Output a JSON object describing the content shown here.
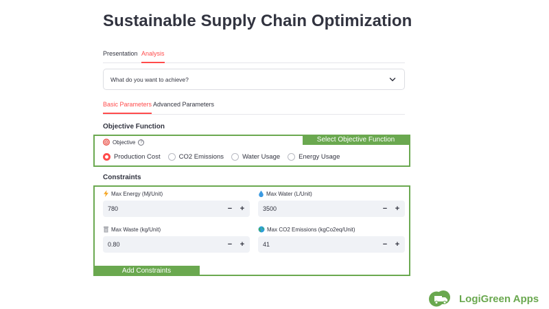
{
  "page": {
    "title": "Sustainable Supply Chain Optimization"
  },
  "main_tabs": [
    {
      "label": "Presentation",
      "active": false
    },
    {
      "label": "Analysis",
      "active": true
    }
  ],
  "expander": {
    "label": "What do you want to achieve?"
  },
  "sub_tabs": [
    {
      "label": "Basic Parameters",
      "active": true
    },
    {
      "label": "Advanced Parameters",
      "active": false
    }
  ],
  "objective": {
    "heading": "Objective Function",
    "label": "Objective",
    "help": "?",
    "annotation": "Select Objective Function",
    "options": [
      "Production Cost",
      "CO2 Emissions",
      "Water Usage",
      "Energy Usage"
    ],
    "selected": "Production Cost"
  },
  "constraints": {
    "heading": "Constraints",
    "annotation": "Add Constraints",
    "fields": [
      {
        "label": "Max Energy (Mj/Unit)",
        "value": "780",
        "icon": "lightning-icon"
      },
      {
        "label": "Max Water (L/Unit)",
        "value": "3500",
        "icon": "droplet-icon"
      },
      {
        "label": "Max Waste (kg/Unit)",
        "value": "0.80",
        "icon": "trash-icon"
      },
      {
        "label": "Max CO2 Emissions (kgCo2eq/Unit)",
        "value": "41",
        "icon": "globe-icon"
      }
    ],
    "minus": "−",
    "plus": "+"
  },
  "brand": {
    "name": "LogiGreen Apps"
  },
  "colors": {
    "accent": "#ff4b4b",
    "annotation_green": "#6aa84f",
    "input_bg": "#f0f2f6"
  }
}
